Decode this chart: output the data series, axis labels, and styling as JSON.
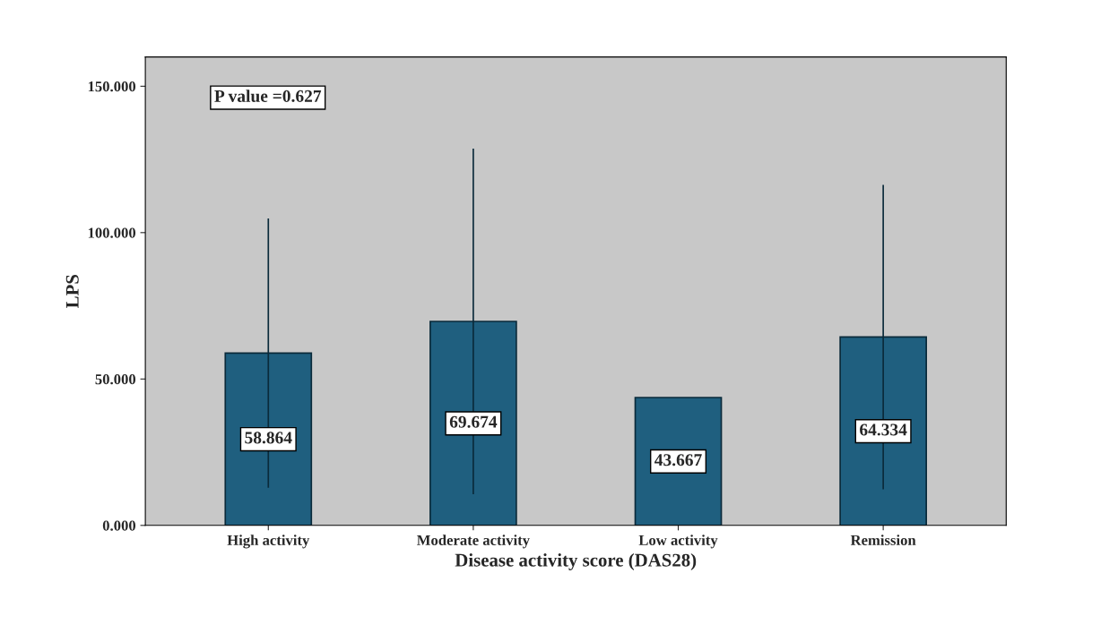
{
  "chart_data": {
    "type": "bar",
    "xlabel": "Disease activity score (DAS28)",
    "ylabel": "LPS",
    "categories": [
      "High activity",
      "Moderate activity",
      "Low activity",
      "Remission"
    ],
    "values": [
      58.864,
      69.674,
      43.667,
      64.334
    ],
    "errors": [
      46,
      59,
      null,
      52
    ],
    "color": "#1f5f7f",
    "ylim": [
      0,
      160
    ],
    "yticks": [
      {
        "value": 0,
        "label": "0.000"
      },
      {
        "value": 50,
        "label": "50.000"
      },
      {
        "value": 100,
        "label": "100.000"
      },
      {
        "value": 150,
        "label": "150.000"
      }
    ],
    "data_labels": true,
    "annotations": [
      "P value =0.627"
    ]
  }
}
